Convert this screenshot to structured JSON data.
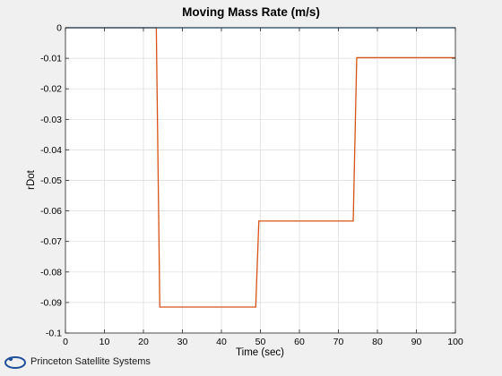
{
  "chart_data": {
    "type": "line",
    "title": "Moving Mass Rate (m/s)",
    "xlabel": "Time (sec)",
    "ylabel": "rDot",
    "xlim": [
      0,
      100
    ],
    "ylim": [
      -0.1,
      0
    ],
    "xticks": [
      0,
      10,
      20,
      30,
      40,
      50,
      60,
      70,
      80,
      90,
      100
    ],
    "xtick_labels": [
      "0",
      "10",
      "20",
      "30",
      "40",
      "50",
      "60",
      "70",
      "80",
      "90",
      "100"
    ],
    "yticks": [
      0,
      -0.01,
      -0.02,
      -0.03,
      -0.04,
      -0.05,
      -0.06,
      -0.07,
      -0.08,
      -0.09,
      -0.1
    ],
    "ytick_labels": [
      "0",
      "-0.01",
      "-0.02",
      "-0.03",
      "-0.04",
      "-0.05",
      "-0.06",
      "-0.07",
      "-0.08",
      "-0.09",
      "-0.1"
    ],
    "grid": true,
    "series": [
      {
        "color": "#d95319",
        "x": [
          0,
          23.3,
          24.2,
          48.8,
          49.6,
          73.8,
          74.7,
          100
        ],
        "y": [
          0,
          0,
          -0.0915,
          -0.0915,
          -0.0633,
          -0.0633,
          -0.0098,
          -0.0098
        ]
      },
      {
        "color": "#0072bd",
        "x": [
          0,
          100
        ],
        "y": [
          0,
          0
        ]
      }
    ]
  },
  "branding": {
    "company_name": "Princeton Satellite Systems",
    "logo_color": "#1f4e9a"
  }
}
